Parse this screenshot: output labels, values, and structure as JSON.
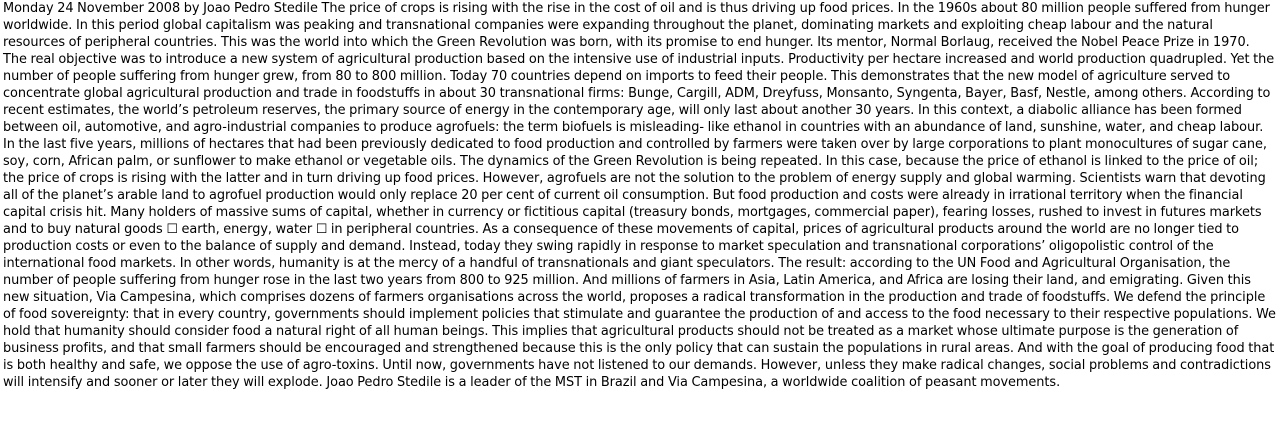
{
  "article": {
    "text": "Monday 24 November 2008 by Joao Pedro Stedile  The price of crops is rising with the rise in the cost of oil and is thus driving up food prices.  In the 1960s about 80 million people suffered from hunger worldwide. In this period global capitalism was peaking and transnational companies were expanding throughout the planet, dominating markets and exploiting cheap labour and the natural resources of peripheral countries.  This was the world into which the Green Revolution was born, with its promise to end hunger. Its mentor, Normal Borlaug, received the Nobel Peace Prize in 1970. The real objective was to introduce a new system of agricultural production based on the intensive use of industrial inputs. Productivity per hectare increased and world production quadrupled. Yet the number of people suffering from hunger grew, from 80 to 800 million.  Today 70 countries depend on imports to feed their people. This demonstrates that the new model of agriculture served to concentrate global agricultural production and trade in foodstuffs in about 30 transnational firms: Bunge, Cargill, ADM, Dreyfuss, Monsanto, Syngenta, Bayer, Basf, Nestle, among others.  According to recent estimates, the world’s petroleum reserves, the primary source of energy in the contemporary age, will only last about another 30 years.  In this context, a diabolic alliance has been formed between oil, automotive, and agro-industrial companies to produce agrofuels: the term biofuels is misleading- like ethanol in countries with an abundance of land, sunshine, water, and cheap labour.  In the last five years, millions of hectares that had been previously dedicated to food production and controlled by farmers were taken over by large corporations to plant monocultures of sugar cane, soy, corn, African palm, or sunflower to make ethanol or vegetable oils.  The dynamics of the Green Revolution is being repeated. In this case, because the price of ethanol is linked to the price of oil; the price of crops is rising with the latter and in turn driving up food prices.  However, agrofuels are not the solution to the problem of energy supply and global warming. Scientists warn that devoting all of the planet’s arable land to agrofuel production would only replace 20 per cent of current oil consumption. But food production and costs were already in irrational territory when the financial capital crisis hit.  Many holders of massive sums of capital, whether in currency or fictitious capital (treasury bonds, mortgages, commercial paper), fearing losses, rushed to invest in futures markets and to buy natural goods ☐ earth, energy, water ☐ in peripheral countries. As a consequence of these movements of capital, prices of agricultural products around the world are no longer tied to production costs or even to the balance of supply and demand. Instead, today they swing rapidly in response to market speculation and transnational corporations’ oligopolistic control of the international food markets. In other words, humanity is at the mercy of a handful of transnationals and giant speculators.  The result: according to the UN Food and Agricultural Organisation, the number of people suffering from hunger rose in the last two years from 800 to 925 million. And millions of farmers in Asia, Latin America, and Africa are losing their land, and emigrating.  Given this new situation, Via Campesina, which comprises dozens of farmers organisations across the world, proposes a radical transformation in the production and trade of foodstuffs. We defend the principle of food sovereignty: that in every country, governments should implement policies that stimulate and guarantee the production of and access to the food necessary to their respective populations.  We hold that humanity should consider food a natural right of all human beings. This implies that agricultural products should not be treated as a market whose ultimate purpose is the generation of business profits, and that small farmers should be encouraged and strengthened because this is the only policy that can sustain the populations in rural areas. And with the goal of producing food that is both healthy and safe, we oppose the use of agro-toxins. Until now, governments have not listened to our demands. However, unless they make radical changes, social problems and contradictions will intensify and sooner or later they will explode.  Joao Pedro Stedile is a leader of the MST in Brazil and Via Campesina, a worldwide coalition of peasant movements."
  }
}
